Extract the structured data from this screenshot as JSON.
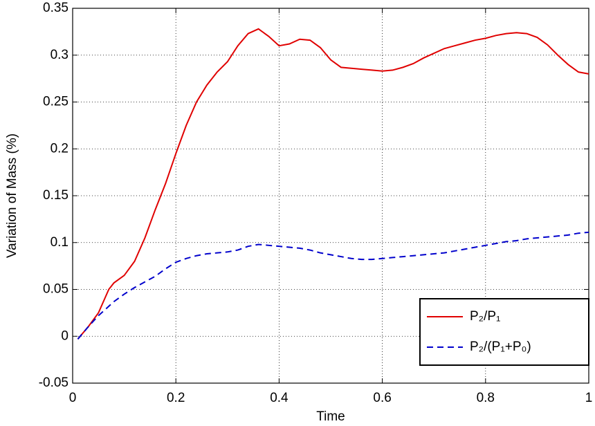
{
  "chart_data": {
    "type": "line",
    "xlabel": "Time",
    "ylabel": "Variation of Mass (%)",
    "x": [
      0.01,
      0.03,
      0.05,
      0.07,
      0.08,
      0.1,
      0.12,
      0.14,
      0.16,
      0.18,
      0.2,
      0.22,
      0.24,
      0.26,
      0.28,
      0.3,
      0.32,
      0.34,
      0.36,
      0.38,
      0.4,
      0.42,
      0.44,
      0.46,
      0.48,
      0.5,
      0.52,
      0.54,
      0.56,
      0.58,
      0.6,
      0.62,
      0.64,
      0.66,
      0.68,
      0.7,
      0.72,
      0.74,
      0.76,
      0.78,
      0.8,
      0.82,
      0.84,
      0.86,
      0.88,
      0.9,
      0.92,
      0.94,
      0.96,
      0.98,
      1.0
    ],
    "series": [
      {
        "name": "P₂/P₁",
        "color": "#e00000",
        "linestyle": "solid",
        "values": [
          -0.003,
          0.01,
          0.025,
          0.05,
          0.057,
          0.065,
          0.08,
          0.105,
          0.135,
          0.163,
          0.195,
          0.225,
          0.25,
          0.268,
          0.282,
          0.293,
          0.31,
          0.323,
          0.328,
          0.32,
          0.31,
          0.312,
          0.317,
          0.316,
          0.308,
          0.295,
          0.287,
          0.286,
          0.285,
          0.284,
          0.283,
          0.284,
          0.287,
          0.291,
          0.297,
          0.302,
          0.307,
          0.31,
          0.313,
          0.316,
          0.318,
          0.321,
          0.323,
          0.324,
          0.323,
          0.319,
          0.311,
          0.3,
          0.29,
          0.282,
          0.28
        ]
      },
      {
        "name": "P₂/(P₁+P₀)",
        "color": "#0000cc",
        "linestyle": "dashed",
        "values": [
          -0.003,
          0.01,
          0.022,
          0.032,
          0.037,
          0.045,
          0.052,
          0.058,
          0.064,
          0.072,
          0.079,
          0.083,
          0.086,
          0.088,
          0.089,
          0.09,
          0.092,
          0.096,
          0.098,
          0.097,
          0.096,
          0.095,
          0.094,
          0.092,
          0.089,
          0.087,
          0.085,
          0.083,
          0.082,
          0.082,
          0.083,
          0.084,
          0.085,
          0.086,
          0.087,
          0.088,
          0.089,
          0.091,
          0.093,
          0.095,
          0.097,
          0.099,
          0.101,
          0.102,
          0.104,
          0.105,
          0.106,
          0.107,
          0.108,
          0.11,
          0.111
        ]
      }
    ],
    "xlim": [
      0,
      1
    ],
    "xticks": [
      0,
      0.2,
      0.4,
      0.6,
      0.8,
      1
    ],
    "ylim": [
      -0.05,
      0.35
    ],
    "yticks": [
      -0.05,
      0,
      0.05,
      0.1,
      0.15,
      0.2,
      0.25,
      0.3,
      0.35
    ],
    "grid": true,
    "legend": "lower right"
  }
}
